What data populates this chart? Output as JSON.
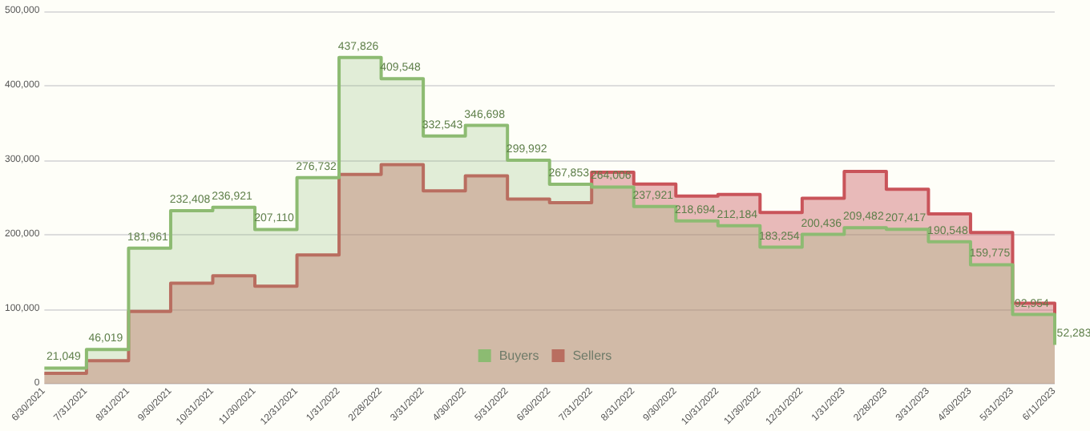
{
  "chart_data": {
    "type": "step",
    "categories": [
      "6/30/2021",
      "7/31/2021",
      "8/31/2021",
      "9/30/2021",
      "10/31/2021",
      "11/30/2021",
      "12/31/2021",
      "1/31/2022",
      "2/28/2022",
      "3/31/2022",
      "4/30/2022",
      "5/31/2022",
      "6/30/2022",
      "7/31/2022",
      "8/31/2022",
      "9/30/2022",
      "10/31/2022",
      "11/30/2022",
      "12/31/2022",
      "1/31/2023",
      "2/28/2023",
      "3/31/2023",
      "4/30/2023",
      "5/31/2023",
      "6/11/2023"
    ],
    "series": [
      {
        "name": "Buyers",
        "color": "#8dbb72",
        "values": [
          21049,
          46019,
          181961,
          232408,
          236921,
          207110,
          276732,
          437826,
          409548,
          332543,
          346698,
          299992,
          267853,
          264006,
          237921,
          218694,
          212184,
          183254,
          200436,
          209482,
          207417,
          190548,
          159775,
          92954,
          52283
        ],
        "value_labels": [
          "21,049",
          "46,019",
          "181,961",
          "232,408",
          "236,921",
          "207,110",
          "276,732",
          "437,826",
          "409,548",
          "332,543",
          "346,698",
          "299,992",
          "267,853",
          "264,006",
          "237,921",
          "218,694",
          "212,184",
          "183,254",
          "200,436",
          "209,482",
          "207,417",
          "190,548",
          "159,775",
          "92,954",
          "52,283"
        ]
      },
      {
        "name": "Sellers",
        "color": "#c9545a",
        "values": [
          14000,
          31000,
          97000,
          135000,
          145000,
          131000,
          173000,
          281000,
          294000,
          259000,
          279000,
          248000,
          243000,
          284000,
          268000,
          252000,
          254000,
          230000,
          249000,
          285000,
          261000,
          228000,
          203000,
          108000,
          61000
        ]
      }
    ],
    "ylim": [
      0,
      500000
    ],
    "yticks": [
      {
        "value": 0,
        "label": "0"
      },
      {
        "value": 100000,
        "label": "100,000"
      },
      {
        "value": 200000,
        "label": "200,000"
      },
      {
        "value": 300000,
        "label": "300,000"
      },
      {
        "value": 400000,
        "label": "400,000"
      },
      {
        "value": 500000,
        "label": "500,000"
      }
    ],
    "grid": "y",
    "legend": "bottom",
    "marker": "none",
    "line_style": "solid"
  }
}
